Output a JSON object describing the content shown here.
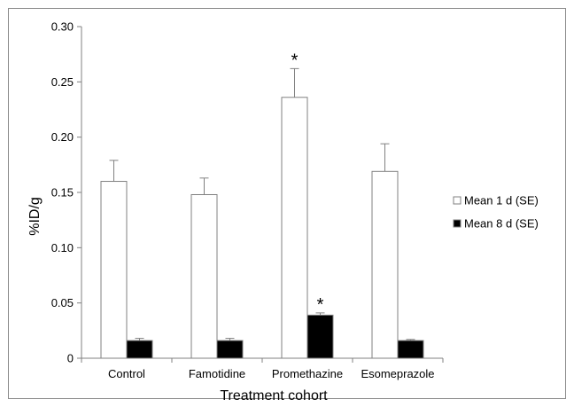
{
  "chart_data": {
    "type": "bar",
    "xlabel": "Treatment cohort",
    "ylabel": "%ID/g",
    "ylim": [
      0,
      0.3
    ],
    "yticks": [
      "0",
      "0.05",
      "0.10",
      "0.15",
      "0.20",
      "0.25",
      "0.30"
    ],
    "grid": false,
    "legend_position": "right",
    "categories": [
      "Control",
      "Famotidine",
      "Promethazine",
      "Esomeprazole"
    ],
    "series": [
      {
        "name": "Mean 1 d (SE)",
        "fill": "#ffffff",
        "values": [
          0.16,
          0.148,
          0.236,
          0.169
        ],
        "errors": [
          0.019,
          0.015,
          0.026,
          0.025
        ],
        "annotations": [
          "",
          "",
          "*",
          ""
        ]
      },
      {
        "name": "Mean 8 d (SE)",
        "fill": "#000000",
        "values": [
          0.016,
          0.016,
          0.039,
          0.016
        ],
        "errors": [
          0.002,
          0.002,
          0.002,
          0.001
        ],
        "annotations": [
          "",
          "",
          "*",
          ""
        ]
      }
    ]
  }
}
